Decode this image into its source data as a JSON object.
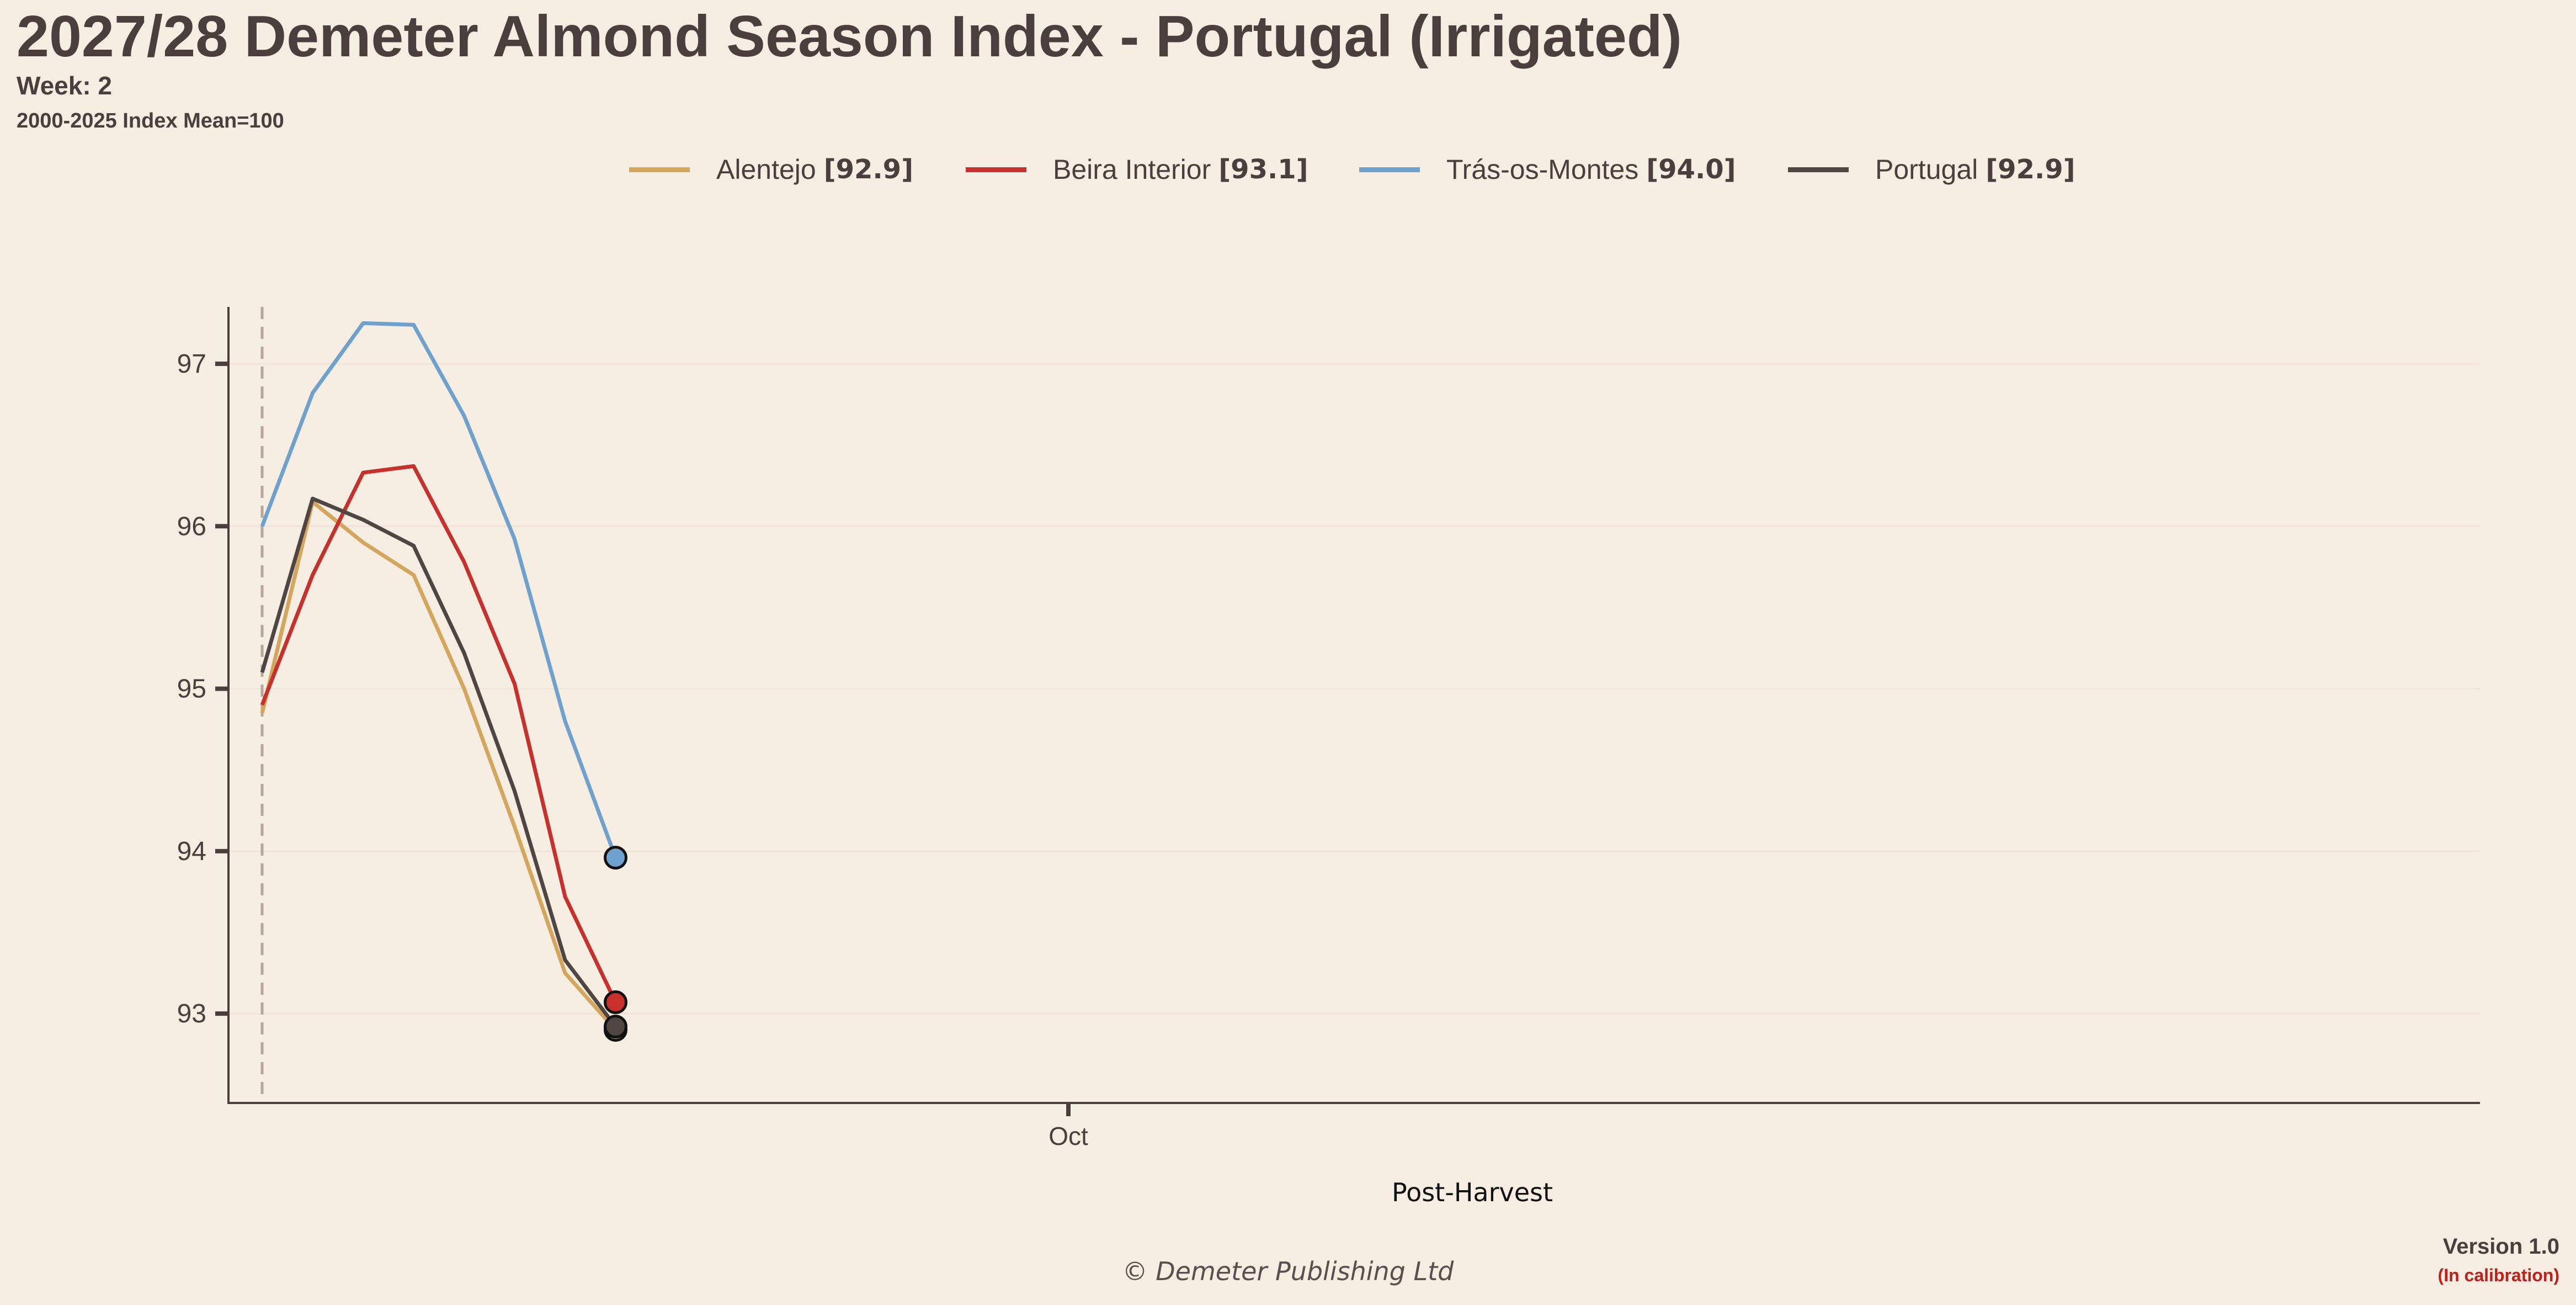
{
  "title": "2027/28 Demeter Almond Season Index - Portugal (Irrigated)",
  "subtitle": "Week: 2",
  "caption": "2000-2025 Index Mean=100",
  "footer": "© Demeter Publishing Ltd",
  "version": "Version 1.0",
  "calibration": "(In calibration)",
  "legend": [
    {
      "name": "Alentejo",
      "value": "[92.9]",
      "color": "#d4a55a"
    },
    {
      "name": "Beira Interior",
      "value": "[93.1]",
      "color": "#c8312b"
    },
    {
      "name": "Trás-os-Montes",
      "value": "[94.0]",
      "color": "#6fa1cf"
    },
    {
      "name": "Portugal",
      "value": "[92.9]",
      "color": "#4f4542"
    }
  ],
  "chart_data": {
    "type": "line",
    "xlabel": "Post-Harvest",
    "ylabel": "",
    "x_tick_labels": [
      "Oct"
    ],
    "y_ticks": [
      93,
      94,
      95,
      96,
      97
    ],
    "ylim": [
      92.45,
      97.35
    ],
    "grid": "horizontal",
    "legend_position": "top-center",
    "x_steps": [
      0,
      1,
      2,
      3,
      4,
      5,
      6,
      7
    ],
    "series": [
      {
        "name": "Alentejo",
        "color": "#d4a55a",
        "values": [
          94.85,
          96.15,
          95.9,
          95.7,
          95.0,
          94.15,
          93.25,
          92.9
        ]
      },
      {
        "name": "Beira Interior",
        "color": "#c8312b",
        "values": [
          94.9,
          95.7,
          96.33,
          96.37,
          95.78,
          95.03,
          93.72,
          93.07
        ]
      },
      {
        "name": "Trás-os-Montes",
        "color": "#6fa1cf",
        "values": [
          96.0,
          96.82,
          97.25,
          97.24,
          96.68,
          95.92,
          94.8,
          93.96
        ]
      },
      {
        "name": "Portugal",
        "color": "#4f4542",
        "values": [
          95.1,
          96.17,
          96.04,
          95.88,
          95.22,
          94.37,
          93.33,
          92.92
        ]
      }
    ]
  }
}
